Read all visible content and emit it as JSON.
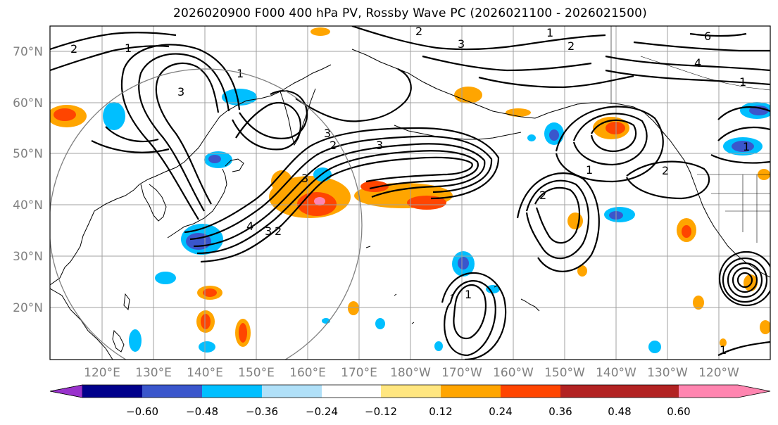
{
  "title": "2026020900 F000 400 hPa PV, Rossby Wave PC (2026021100 - 2026021500)",
  "lat_labels": [
    "70°N",
    "60°N",
    "50°N",
    "40°N",
    "30°N",
    "20°N"
  ],
  "lon_labels": [
    "120°E",
    "130°E",
    "140°E",
    "150°E",
    "160°E",
    "170°E",
    "180°W",
    "170°W",
    "160°W",
    "150°W",
    "140°W",
    "130°W",
    "120°W"
  ],
  "colorbar": {
    "ticks": [
      "−0.60",
      "−0.48",
      "−0.36",
      "−0.24",
      "−0.12",
      "0.12",
      "0.24",
      "0.36",
      "0.48",
      "0.60"
    ],
    "colors": [
      "#9932cc",
      "#00008b",
      "#3a56cc",
      "#00bfff",
      "#b0e0f8",
      "#ffffff",
      "#ffe680",
      "#ffa500",
      "#ff4500",
      "#b22222",
      "#ff85b0"
    ]
  },
  "contour_labels": [
    "1",
    "2",
    "3",
    "4",
    "6"
  ]
}
